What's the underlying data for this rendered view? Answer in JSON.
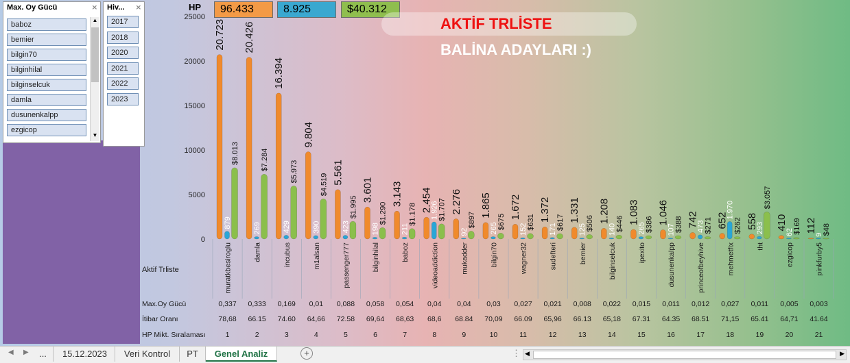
{
  "slicer1": {
    "title": "Max. Oy Gücü",
    "items": [
      "baboz",
      "bemier",
      "bilgin70",
      "bilginhilal",
      "bilginselcuk",
      "damla",
      "dusunenkalpp",
      "ezgicop"
    ]
  },
  "slicer2": {
    "title": "Hiv...",
    "items": [
      "2017",
      "2018",
      "2020",
      "2021",
      "2022",
      "2023"
    ]
  },
  "header": {
    "hp_label": "HP",
    "hp_value": "96.433",
    "mid_value": "8.925",
    "money_value": "$40.312",
    "title1": "AKTİF TRLİSTE",
    "title2": "BALİNA ADAYLARI :)"
  },
  "colors": {
    "orange": "#f08a2c",
    "blue": "#2aa6d6",
    "green": "#8bbf4c",
    "title_red": "#ee1111",
    "tab_green": "#217346"
  },
  "chart_data": {
    "type": "bar",
    "ylim": [
      0,
      25000
    ],
    "yticks": [
      "0",
      "5000",
      "10000",
      "15000",
      "20000",
      "25000"
    ],
    "xlabel": "Aktif Trliste",
    "categories": [
      "muratkbesiroglu",
      "damla",
      "incubus",
      "m1alsan",
      "passenger777",
      "bilginhilal",
      "baboz",
      "videoaddiction",
      "mukadder",
      "bilgin70",
      "wagner32",
      "sudefteri",
      "bemier",
      "bilginselcuk",
      "ipexito",
      "dusunenkalpp",
      "princeofbeyhive",
      "mehmetfix",
      "tht",
      "ezgicop",
      "pinkfurby5"
    ],
    "series": [
      {
        "values": [
          20723,
          20426,
          16394,
          9804,
          5561,
          3601,
          3143,
          2454,
          2276,
          1865,
          1672,
          1372,
          1331,
          1208,
          1083,
          1046,
          742,
          652,
          558,
          410,
          112
        ],
        "labels": [
          "20.723",
          "20.426",
          "16.394",
          "9.804",
          "5.561",
          "3.601",
          "3.143",
          "2.454",
          "2.276",
          "1.865",
          "1.672",
          "1.372",
          "1.331",
          "1.208",
          "1.083",
          "1.046",
          "742",
          "652",
          "558",
          "410",
          "112"
        ]
      },
      {
        "values": [
          879,
          269,
          429,
          390,
          423,
          198,
          211,
          1926,
          92,
          265,
          152,
          171,
          125,
          140,
          265,
          107,
          473,
          1970,
          293,
          62,
          9
        ],
        "labels": [
          "879",
          "269",
          "429",
          "390",
          "423",
          "198",
          "211",
          "1.926",
          "92",
          "265",
          "152",
          "171",
          "125",
          "140",
          "265",
          "107",
          "473",
          "1.970",
          "293",
          "62",
          "9"
        ]
      },
      {
        "values": [
          8013,
          7284,
          5973,
          4519,
          1995,
          1290,
          1178,
          1707,
          897,
          675,
          631,
          617,
          506,
          446,
          386,
          388,
          271,
          262,
          3057,
          169,
          48
        ],
        "labels": [
          "$8.013",
          "$7.284",
          "$5.973",
          "$4.519",
          "$1.995",
          "$1.290",
          "$1.178",
          "$1.707",
          "$897",
          "$675",
          "$631",
          "$617",
          "$506",
          "$446",
          "$386",
          "$388",
          "$271",
          "$262",
          "$3.057",
          "$169",
          "$48"
        ]
      }
    ],
    "table_rows": [
      {
        "label": "Max.Oy Gücü",
        "values": [
          "0,337",
          "0,333",
          "0,169",
          "0,01",
          "0,088",
          "0,058",
          "0,054",
          "0,04",
          "0,04",
          "0,03",
          "0,027",
          "0,021",
          "0,008",
          "0,022",
          "0,015",
          "0,011",
          "0,012",
          "0,027",
          "0,011",
          "0,005",
          "0,003"
        ]
      },
      {
        "label": "İtibar Oranı",
        "values": [
          "78,68",
          "66.15",
          "74.60",
          "64,66",
          "72.58",
          "69,64",
          "68,63",
          "68,6",
          "68.84",
          "70,09",
          "66.09",
          "65,96",
          "66.13",
          "65,18",
          "67.31",
          "64.35",
          "68.51",
          "71,15",
          "65.41",
          "64,71",
          "41.64"
        ]
      },
      {
        "label": "HP Mikt. Sıralaması",
        "values": [
          "1",
          "2",
          "3",
          "4",
          "5",
          "6",
          "7",
          "8",
          "9",
          "10",
          "11",
          "12",
          "13",
          "14",
          "15",
          "16",
          "17",
          "18",
          "19",
          "20",
          "21"
        ]
      }
    ]
  },
  "tabs": [
    "...",
    "15.12.2023",
    "Veri Kontrol",
    "PT",
    "Genel Analiz"
  ],
  "active_tab": "Genel Analiz"
}
